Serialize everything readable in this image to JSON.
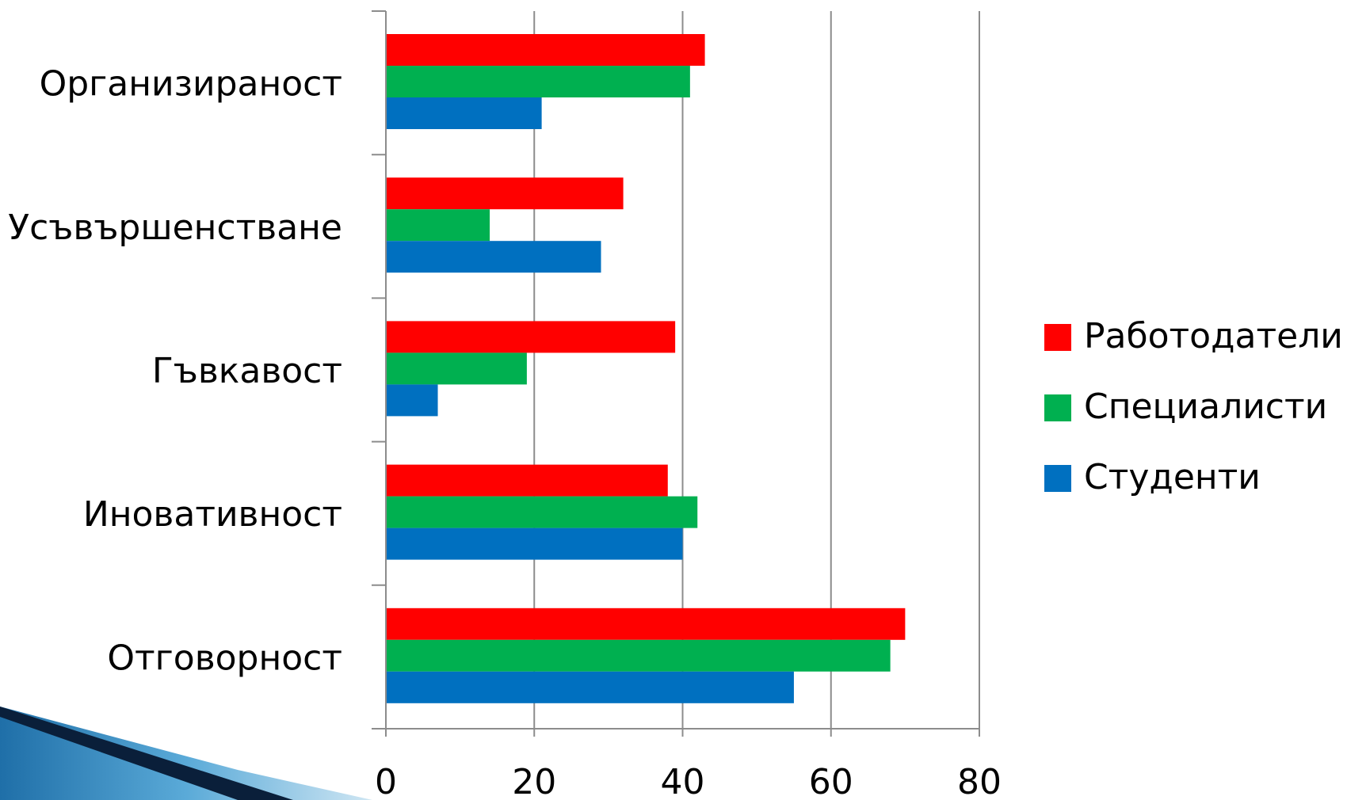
{
  "chart_data": {
    "type": "bar",
    "orientation": "horizontal",
    "categories": [
      "Организираност",
      "Усъвършенстване",
      "Гъвкавост",
      "Иновативност",
      "Отговорност"
    ],
    "series": [
      {
        "name": "Работодатели",
        "color": "#ff0000",
        "values": [
          43,
          32,
          39,
          38,
          70
        ]
      },
      {
        "name": "Специалисти",
        "color": "#00b050",
        "values": [
          41,
          14,
          19,
          42,
          68
        ]
      },
      {
        "name": "Студенти",
        "color": "#0070c0",
        "values": [
          21,
          29,
          7,
          40,
          55
        ]
      }
    ],
    "xlim": [
      0,
      80
    ],
    "x_ticks": [
      0,
      20,
      40,
      60,
      80
    ],
    "grid": true,
    "legend_position": "right",
    "title": "",
    "xlabel": "",
    "ylabel": ""
  }
}
